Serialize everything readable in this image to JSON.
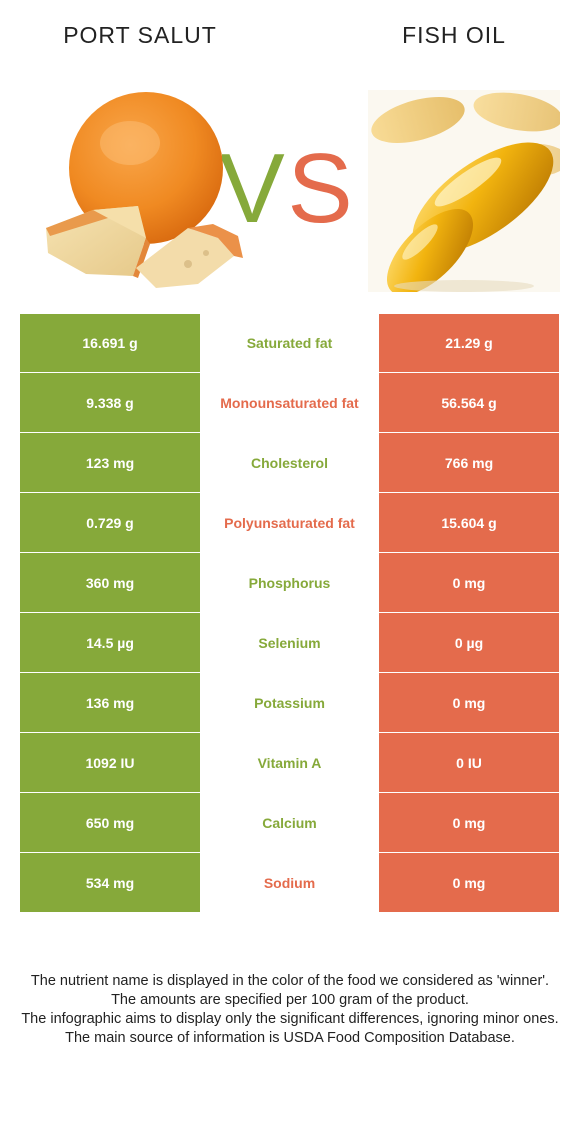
{
  "foods": {
    "left": {
      "name": "PORT SALUT",
      "color": "#86a93a"
    },
    "right": {
      "name": "FISH OIL",
      "color": "#e46b4c"
    }
  },
  "vs": {
    "v": "V",
    "s": "S"
  },
  "rows": [
    {
      "nutrient": "Saturated fat",
      "left": "16.691 g",
      "right": "21.29 g",
      "winner": "left"
    },
    {
      "nutrient": "Monounsaturated fat",
      "left": "9.338 g",
      "right": "56.564 g",
      "winner": "right"
    },
    {
      "nutrient": "Cholesterol",
      "left": "123 mg",
      "right": "766 mg",
      "winner": "left"
    },
    {
      "nutrient": "Polyunsaturated fat",
      "left": "0.729 g",
      "right": "15.604 g",
      "winner": "right"
    },
    {
      "nutrient": "Phosphorus",
      "left": "360 mg",
      "right": "0 mg",
      "winner": "left"
    },
    {
      "nutrient": "Selenium",
      "left": "14.5 µg",
      "right": "0 µg",
      "winner": "left"
    },
    {
      "nutrient": "Potassium",
      "left": "136 mg",
      "right": "0 mg",
      "winner": "left"
    },
    {
      "nutrient": "Vitamin A",
      "left": "1092 IU",
      "right": "0 IU",
      "winner": "left"
    },
    {
      "nutrient": "Calcium",
      "left": "650 mg",
      "right": "0 mg",
      "winner": "left"
    },
    {
      "nutrient": "Sodium",
      "left": "534 mg",
      "right": "0 mg",
      "winner": "right"
    }
  ],
  "footer": [
    "The nutrient name is displayed in the color of the food we considered as 'winner'.",
    "The amounts are specified per 100 gram of the product.",
    "The infographic aims to display only the significant differences, ignoring minor ones.",
    "The main source of information is USDA Food Composition Database."
  ]
}
